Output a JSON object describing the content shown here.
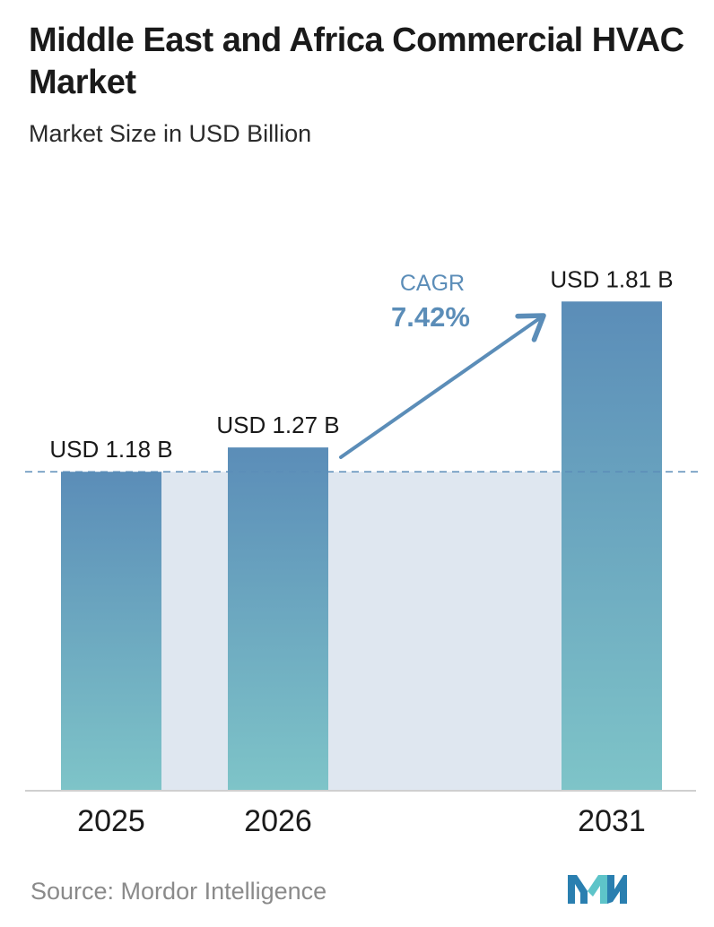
{
  "header": {
    "title": "Middle East and Africa Commercial HVAC Market",
    "subtitle": "Market Size in USD Billion"
  },
  "chart_data": {
    "type": "bar",
    "categories": [
      "2025",
      "2026",
      "2031"
    ],
    "values": [
      1.18,
      1.27,
      1.81
    ],
    "value_labels": [
      "USD 1.18 B",
      "USD 1.27 B",
      "USD 1.81 B"
    ],
    "ylim": [
      0,
      2.0
    ],
    "reference_line": 1.18,
    "annotation": {
      "label": "CAGR",
      "value": "7.42%"
    },
    "colors": {
      "bar_top": "#5b8db8",
      "bar_bottom": "#7ec4c8",
      "band": "#dfe7f0",
      "arrow": "#5b8db8",
      "cagr_text": "#5b8db8",
      "baseline": "#cfcfcf"
    }
  },
  "footer": {
    "source": "Source:  Mordor Intelligence",
    "logo_icon": "mordor-intelligence-logo-icon"
  }
}
